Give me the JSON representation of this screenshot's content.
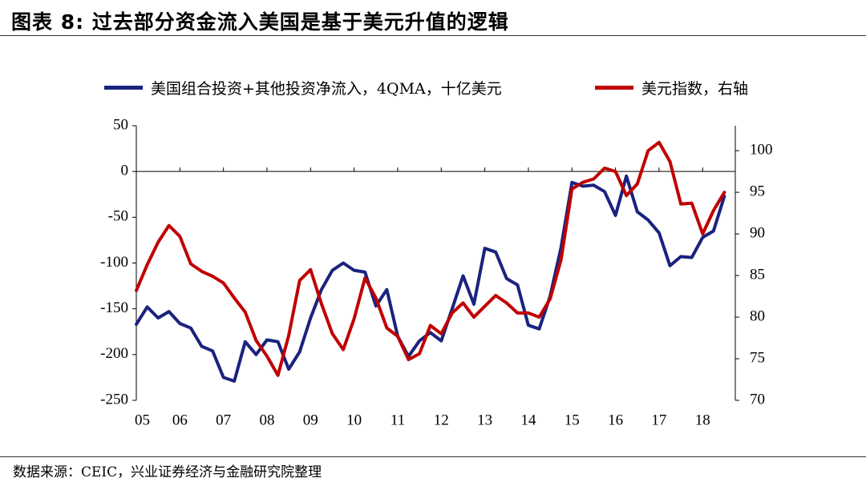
{
  "figure": {
    "title": "图表 8:  过去部分资金流入美国是基于美元升值的逻辑",
    "source": "数据来源：CEIC，兴业证券经济与金融研究院整理"
  },
  "chart_data": {
    "type": "line",
    "x_tick_labels": [
      "05",
      "06",
      "07",
      "08",
      "09",
      "10",
      "11",
      "12",
      "13",
      "14",
      "15",
      "16",
      "17",
      "18"
    ],
    "x_range": [
      2005.0,
      2018.75
    ],
    "left_axis": {
      "ticks": [
        "50",
        "0",
        "-50",
        "-100",
        "-150",
        "-200",
        "-250"
      ],
      "ylim": [
        -250,
        50
      ]
    },
    "right_axis": {
      "ticks": [
        "100",
        "95",
        "90",
        "85",
        "80",
        "75",
        "70"
      ],
      "ylim": [
        70,
        103
      ]
    },
    "grid": false,
    "legend_position": "top",
    "series": [
      {
        "name": "美国组合投资+其他投资净流入，4QMA，十亿美元",
        "axis": "left",
        "color": "#1a237e",
        "x": [
          2005.0,
          2005.25,
          2005.5,
          2005.75,
          2006.0,
          2006.25,
          2006.5,
          2006.75,
          2007.0,
          2007.25,
          2007.5,
          2007.75,
          2008.0,
          2008.25,
          2008.5,
          2008.75,
          2009.0,
          2009.25,
          2009.5,
          2009.75,
          2010.0,
          2010.25,
          2010.5,
          2010.75,
          2011.0,
          2011.25,
          2011.5,
          2011.75,
          2012.0,
          2012.25,
          2012.5,
          2012.75,
          2013.0,
          2013.25,
          2013.5,
          2013.75,
          2014.0,
          2014.25,
          2014.5,
          2014.75,
          2015.0,
          2015.25,
          2015.5,
          2015.75,
          2016.0,
          2016.25,
          2016.5,
          2016.75,
          2017.0,
          2017.25,
          2017.5,
          2017.75,
          2018.0,
          2018.25,
          2018.5
        ],
        "values": [
          -167,
          -148,
          -160,
          -153,
          -166,
          -171,
          -191,
          -196,
          -225,
          -229,
          -186,
          -200,
          -184,
          -186,
          -216,
          -197,
          -160,
          -129,
          -108,
          -100,
          -108,
          -110,
          -147,
          -129,
          -180,
          -202,
          -185,
          -176,
          -185,
          -150,
          -114,
          -145,
          -84,
          -88,
          -117,
          -124,
          -168,
          -172,
          -136,
          -83,
          -12,
          -16,
          -15,
          -22,
          -48,
          -5,
          -44,
          -53,
          -67,
          -103,
          -93,
          -94,
          -72,
          -65,
          -27
        ]
      },
      {
        "name": "美元指数，右轴",
        "axis": "right",
        "color": "#c00000",
        "x": [
          2005.0,
          2005.25,
          2005.5,
          2005.75,
          2006.0,
          2006.25,
          2006.5,
          2006.75,
          2007.0,
          2007.25,
          2007.5,
          2007.75,
          2008.0,
          2008.25,
          2008.5,
          2008.75,
          2009.0,
          2009.25,
          2009.5,
          2009.75,
          2010.0,
          2010.25,
          2010.5,
          2010.75,
          2011.0,
          2011.25,
          2011.5,
          2011.75,
          2012.0,
          2012.25,
          2012.5,
          2012.75,
          2013.0,
          2013.25,
          2013.5,
          2013.75,
          2014.0,
          2014.25,
          2014.5,
          2014.75,
          2015.0,
          2015.25,
          2015.5,
          2015.75,
          2016.0,
          2016.25,
          2016.5,
          2016.75,
          2017.0,
          2017.25,
          2017.5,
          2017.75,
          2018.0,
          2018.25,
          2018.5
        ],
        "values": [
          83.2,
          86.3,
          89.0,
          91.0,
          89.7,
          86.4,
          85.5,
          84.9,
          84.1,
          82.3,
          80.6,
          77.2,
          75.3,
          73.0,
          77.8,
          84.4,
          85.7,
          81.6,
          78.0,
          76.1,
          79.8,
          84.7,
          82.3,
          78.7,
          77.7,
          74.9,
          75.6,
          79.0,
          78.0,
          80.5,
          81.7,
          80.0,
          81.3,
          82.6,
          81.7,
          80.5,
          80.5,
          80.0,
          82.2,
          86.9,
          95.4,
          96.2,
          96.6,
          97.9,
          97.5,
          94.6,
          96.0,
          100.0,
          101.0,
          98.7,
          93.6,
          93.7,
          90.0,
          92.8,
          95.0
        ]
      }
    ]
  }
}
